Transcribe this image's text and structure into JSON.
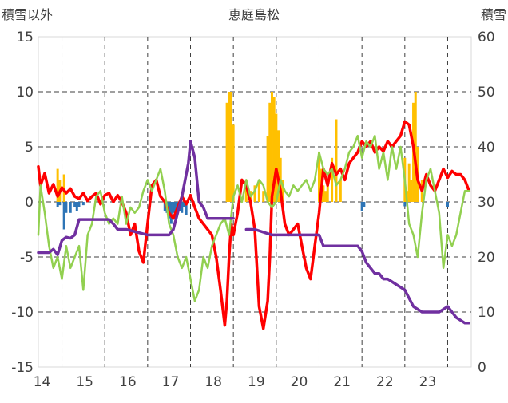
{
  "chart_data": {
    "type": "line",
    "title": "恵庭島松",
    "y_left_label": "積雪以外",
    "y_right_label": "積雪",
    "y_left_range": [
      -15,
      15
    ],
    "y_left_ticks": [
      "15",
      "10",
      "5",
      "0",
      "-5",
      "-10",
      "-15"
    ],
    "y_right_range": [
      0,
      60
    ],
    "y_right_ticks": [
      "60",
      "50",
      "40",
      "30",
      "20",
      "10",
      "0"
    ],
    "x_range": [
      13.45,
      23.55
    ],
    "x_ticks": [
      "14",
      "15",
      "16",
      "17",
      "18",
      "19",
      "20",
      "21",
      "22",
      "23"
    ],
    "grid": "dashed",
    "colors": {
      "red": "#ff0000",
      "green": "#92d050",
      "purple": "#7030a0",
      "snow_bar": "#ffc000",
      "negative_bar": "#2e75b6"
    },
    "series": [
      {
        "color_key": "red",
        "axis": "left",
        "x": [
          13.45,
          13.5,
          13.6,
          13.7,
          13.8,
          13.9,
          14.0,
          14.1,
          14.2,
          14.3,
          14.4,
          14.5,
          14.6,
          14.7,
          14.8,
          14.9,
          15.0,
          15.1,
          15.2,
          15.3,
          15.4,
          15.5,
          15.6,
          15.7,
          15.8,
          15.9,
          16.0,
          16.1,
          16.2,
          16.3,
          16.4,
          16.5,
          16.6,
          16.7,
          16.8,
          16.9,
          17.0,
          17.1,
          17.2,
          17.3,
          17.4,
          17.5,
          17.6,
          17.7,
          17.8,
          17.85,
          17.9,
          17.95,
          18.0,
          18.1,
          18.2,
          18.3,
          18.4,
          18.5,
          18.6,
          18.7,
          18.8,
          18.85,
          18.9,
          19.0,
          19.1,
          19.2,
          19.3,
          19.4,
          19.5,
          19.6,
          19.7,
          19.8,
          19.9,
          20.0,
          20.1,
          20.2,
          20.3,
          20.4,
          20.5,
          20.6,
          20.7,
          20.8,
          20.9,
          21.0,
          21.1,
          21.2,
          21.3,
          21.4,
          21.5,
          21.6,
          21.7,
          21.8,
          21.9,
          22.0,
          22.1,
          22.2,
          22.3,
          22.4,
          22.5,
          22.6,
          22.7,
          22.8,
          22.9,
          23.0,
          23.1,
          23.2,
          23.3,
          23.4,
          23.5
        ],
        "y": [
          3.2,
          1.5,
          2.6,
          0.8,
          1.6,
          0.5,
          1.3,
          0.8,
          1.2,
          0.5,
          0.3,
          0.8,
          0.1,
          0.5,
          0.8,
          -0.2,
          0.6,
          0.8,
          0.0,
          0.6,
          0.0,
          -1.0,
          -3.0,
          -2.0,
          -4.5,
          -5.5,
          -2.0,
          1.5,
          2.0,
          0.5,
          0.0,
          -1.0,
          -1.5,
          -0.5,
          0.5,
          -0.2,
          0.6,
          -0.5,
          -1.5,
          -2.0,
          -2.5,
          -3.0,
          -5.0,
          -8.0,
          -11.2,
          -9.0,
          -5.0,
          -2.0,
          -3.0,
          -1.0,
          2.0,
          1.5,
          0.0,
          -2.5,
          -9.5,
          -11.5,
          -9.0,
          -5.0,
          0.5,
          3.0,
          1.0,
          -2.0,
          -3.0,
          -2.5,
          -2.0,
          -4.0,
          -6.0,
          -7.0,
          -4.0,
          -1.0,
          3.0,
          1.5,
          3.5,
          2.5,
          3.0,
          2.0,
          3.5,
          4.0,
          4.5,
          5.5,
          5.0,
          5.5,
          4.5,
          5.0,
          4.6,
          5.5,
          5.0,
          5.5,
          6.0,
          7.3,
          7.0,
          5.0,
          2.0,
          1.0,
          2.5,
          1.5,
          1.0,
          2.0,
          3.0,
          2.2,
          2.8,
          2.5,
          2.5,
          2.0,
          1.0
        ]
      },
      {
        "color_key": "green",
        "axis": "left",
        "x": [
          13.45,
          13.5,
          13.6,
          13.7,
          13.8,
          13.9,
          14.0,
          14.1,
          14.2,
          14.3,
          14.4,
          14.5,
          14.6,
          14.7,
          14.8,
          14.9,
          15.0,
          15.1,
          15.2,
          15.3,
          15.4,
          15.5,
          15.6,
          15.7,
          15.8,
          15.9,
          16.0,
          16.1,
          16.2,
          16.3,
          16.4,
          16.5,
          16.6,
          16.7,
          16.8,
          16.9,
          17.0,
          17.1,
          17.2,
          17.3,
          17.4,
          17.5,
          17.6,
          17.7,
          17.8,
          17.9,
          18.0,
          18.1,
          18.2,
          18.3,
          18.4,
          18.5,
          18.6,
          18.7,
          18.8,
          18.9,
          19.0,
          19.1,
          19.2,
          19.3,
          19.4,
          19.5,
          19.6,
          19.7,
          19.8,
          19.9,
          20.0,
          20.1,
          20.2,
          20.3,
          20.4,
          20.5,
          20.6,
          20.7,
          20.8,
          20.9,
          21.0,
          21.1,
          21.2,
          21.3,
          21.4,
          21.5,
          21.6,
          21.7,
          21.8,
          21.9,
          22.0,
          22.1,
          22.2,
          22.3,
          22.4,
          22.5,
          22.6,
          22.7,
          22.8,
          22.9,
          23.0,
          23.1,
          23.2,
          23.3,
          23.4,
          23.5
        ],
        "y": [
          -3.0,
          1.5,
          -1.0,
          -4.0,
          -6.0,
          -5.0,
          -7.0,
          -4.0,
          -6.0,
          -5.0,
          -4.0,
          -8.0,
          -3.0,
          -2.0,
          0.5,
          1.0,
          -1.0,
          -2.0,
          -1.5,
          -2.0,
          0.5,
          -2.0,
          -0.5,
          -1.0,
          -0.5,
          1.0,
          2.0,
          1.0,
          2.0,
          3.0,
          1.0,
          -2.0,
          -3.0,
          -5.0,
          -6.0,
          -5.0,
          -7.0,
          -9.0,
          -8.0,
          -5.0,
          -6.0,
          -4.0,
          -3.0,
          -2.0,
          -1.5,
          -3.0,
          0.5,
          1.5,
          0.0,
          2.0,
          0.5,
          1.0,
          2.0,
          1.5,
          0.0,
          -0.5,
          0.0,
          2.0,
          1.0,
          0.5,
          1.5,
          1.0,
          1.5,
          2.0,
          1.0,
          2.0,
          4.5,
          3.0,
          2.5,
          3.0,
          1.5,
          2.0,
          3.0,
          4.5,
          5.0,
          6.0,
          4.0,
          5.5,
          5.0,
          6.0,
          3.0,
          4.5,
          2.0,
          5.0,
          3.0,
          5.0,
          2.0,
          -2.0,
          -3.0,
          -5.0,
          -1.0,
          2.0,
          3.0,
          1.0,
          -1.0,
          -6.0,
          -3.0,
          -4.0,
          -3.0,
          -1.0,
          1.0,
          1.0
        ]
      },
      {
        "color_key": "purple",
        "axis": "left",
        "x": [
          13.45,
          13.7,
          13.8,
          13.9,
          14.0,
          14.1,
          14.2,
          14.3,
          14.4,
          14.6,
          15.0,
          15.1,
          15.2,
          15.3,
          15.5,
          16.0,
          16.5,
          16.6,
          16.7,
          16.8,
          16.9,
          16.95,
          17.0,
          17.1,
          17.2,
          17.3,
          17.4,
          17.6,
          18.0,
          18.05,
          18.3,
          18.5,
          18.9,
          19.0,
          19.5,
          20.0,
          20.1,
          20.5,
          20.9,
          21.0,
          21.1,
          21.2,
          21.3,
          21.4,
          21.5,
          21.6,
          21.8,
          22.0,
          22.2,
          22.4,
          22.6,
          22.8,
          23.0,
          23.2,
          23.4,
          23.5
        ],
        "y": [
          -4.6,
          -4.6,
          -4.3,
          -4.8,
          -3.5,
          -3.2,
          -3.3,
          -3.0,
          -1.6,
          -1.6,
          -1.6,
          -1.6,
          -2.0,
          -2.5,
          -2.5,
          -3.0,
          -3.0,
          -2.5,
          -1.0,
          0.5,
          2.5,
          3.5,
          5.5,
          4.0,
          0.0,
          -0.5,
          -1.5,
          -1.5,
          -1.5,
          null,
          -2.5,
          -2.5,
          -3.0,
          -3.0,
          -3.0,
          -3.0,
          -4.0,
          -4.0,
          -4.0,
          -4.5,
          -5.5,
          -6.0,
          -6.5,
          -6.5,
          -7.0,
          -7.0,
          -7.5,
          -8.0,
          -9.5,
          -10.0,
          -10.0,
          -10.0,
          -9.5,
          -10.5,
          -11.0,
          -11.0
        ]
      }
    ],
    "bar_series": [
      {
        "color_key": "snow_bar",
        "axis": "right",
        "x": [
          13.9,
          13.95,
          14.05,
          17.85,
          17.9,
          17.95,
          18.0,
          18.3,
          18.4,
          18.5,
          18.6,
          18.7,
          18.8,
          18.85,
          18.9,
          18.95,
          19.0,
          19.05,
          19.1,
          19.15,
          20.0,
          20.05,
          20.1,
          20.15,
          20.2,
          20.3,
          20.4,
          20.5,
          22.0,
          22.05,
          22.1,
          22.15,
          22.2,
          22.25,
          22.3,
          22.4
        ],
        "y": [
          36.0,
          34.0,
          35.0,
          48.0,
          50.0,
          50.0,
          44.0,
          34.0,
          32.0,
          33.0,
          34.0,
          32.0,
          42.0,
          48.0,
          50.0,
          49.0,
          46.0,
          43.0,
          38.0,
          34.0,
          39.0,
          36.0,
          33.0,
          32.0,
          34.0,
          38.0,
          45.0,
          34.0,
          38.0,
          32.0,
          37.0,
          34.0,
          48.0,
          50.0,
          40.0,
          34.0
        ]
      },
      {
        "color_key": "negative_bar",
        "axis": "left",
        "x": [
          13.9,
          13.95,
          14.05,
          14.1,
          14.2,
          14.3,
          14.35,
          14.4,
          14.5,
          16.4,
          16.45,
          16.5,
          16.55,
          16.6,
          16.65,
          16.7,
          16.75,
          16.8,
          16.85,
          16.9,
          21.0,
          21.05,
          22.0,
          23.0
        ],
        "y": [
          -0.5,
          -0.3,
          -2.5,
          -1.0,
          -1.0,
          -0.5,
          -0.8,
          -0.5,
          -0.3,
          -0.8,
          -1.0,
          -1.5,
          -2.0,
          -1.0,
          -1.5,
          -1.0,
          -0.8,
          -1.0,
          -0.5,
          -1.2,
          -0.8,
          -0.5,
          -0.4,
          -0.5
        ]
      }
    ]
  }
}
